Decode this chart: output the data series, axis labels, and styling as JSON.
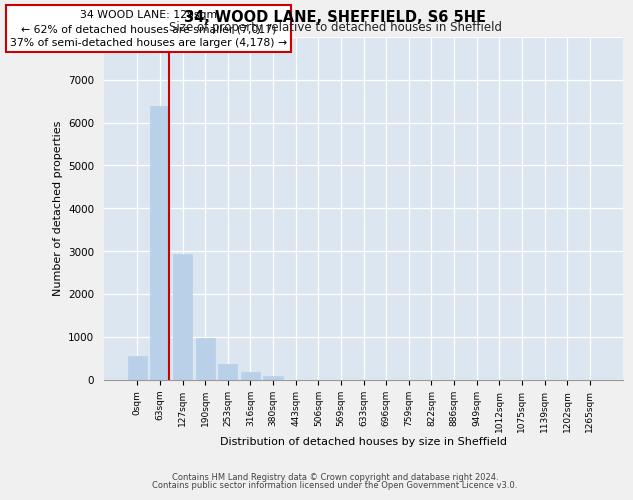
{
  "title": "34, WOOD LANE, SHEFFIELD, S6 5HE",
  "subtitle": "Size of property relative to detached houses in Sheffield",
  "xlabel": "Distribution of detached houses by size in Sheffield",
  "ylabel": "Number of detached properties",
  "bar_labels": [
    "0sqm",
    "63sqm",
    "127sqm",
    "190sqm",
    "253sqm",
    "316sqm",
    "380sqm",
    "443sqm",
    "506sqm",
    "569sqm",
    "633sqm",
    "696sqm",
    "759sqm",
    "822sqm",
    "886sqm",
    "949sqm",
    "1012sqm",
    "1075sqm",
    "1139sqm",
    "1202sqm",
    "1265sqm"
  ],
  "bar_values": [
    560,
    6380,
    2940,
    980,
    370,
    170,
    80,
    0,
    0,
    0,
    0,
    0,
    0,
    0,
    0,
    0,
    0,
    0,
    0,
    0,
    0
  ],
  "bar_color": "#b8d0e8",
  "marker_color": "#cc0000",
  "annotation_title": "34 WOOD LANE: 129sqm",
  "annotation_line1": "← 62% of detached houses are smaller (7,017)",
  "annotation_line2": "37% of semi-detached houses are larger (4,178) →",
  "annotation_box_color": "#ffffff",
  "annotation_box_edge": "#cc0000",
  "ylim": [
    0,
    8000
  ],
  "yticks": [
    0,
    1000,
    2000,
    3000,
    4000,
    5000,
    6000,
    7000,
    8000
  ],
  "background_color": "#dce6f0",
  "fig_background": "#f0f0f0",
  "footer_line1": "Contains HM Land Registry data © Crown copyright and database right 2024.",
  "footer_line2": "Contains public sector information licensed under the Open Government Licence v3.0."
}
